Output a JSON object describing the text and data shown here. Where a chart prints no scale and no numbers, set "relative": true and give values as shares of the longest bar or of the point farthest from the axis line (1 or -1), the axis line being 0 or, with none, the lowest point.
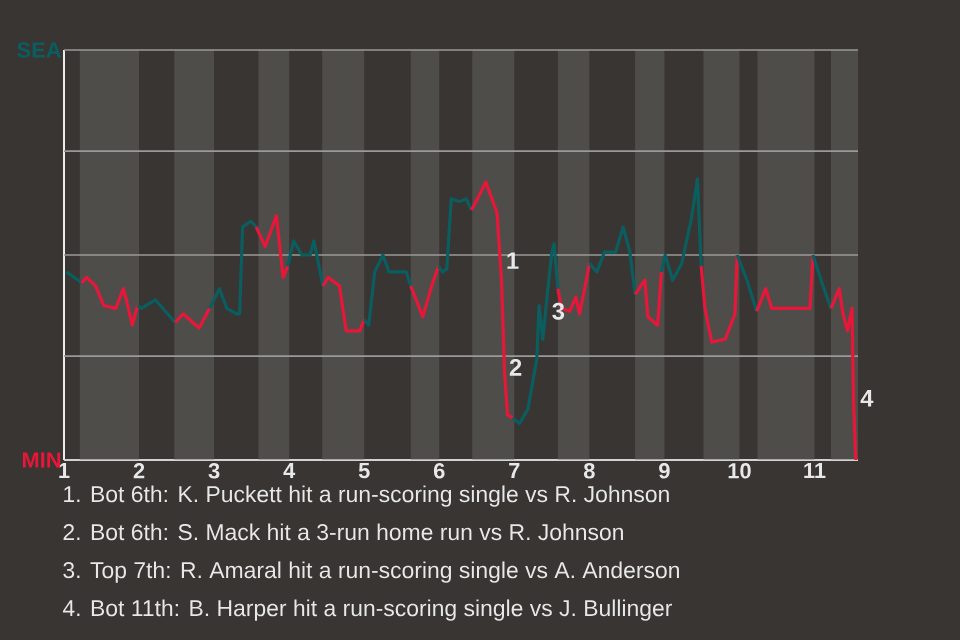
{
  "chart_data": {
    "type": "line",
    "relative": true,
    "xlim": [
      1,
      11.58
    ],
    "xticks": [
      1,
      2,
      3,
      4,
      5,
      6,
      7,
      8,
      9,
      10,
      11
    ],
    "ref_lines": [
      {
        "axis": "y",
        "value": 0,
        "label": "MIN",
        "color": "#c8c8c8"
      },
      {
        "axis": "y",
        "value": 0.37,
        "color": "#9a9a9a"
      },
      {
        "axis": "y",
        "value": 0.73,
        "color": "#9a9a9a"
      },
      {
        "axis": "y",
        "value": 1.1,
        "color": "#9a9a9a"
      },
      {
        "axis": "y",
        "value": 1.46,
        "label": "SEA",
        "color": "#9a9a9a"
      }
    ],
    "bands": [
      {
        "axis": "x",
        "from": 1.21,
        "to": 2,
        "color": "#4f4d4a"
      },
      {
        "axis": "x",
        "from": 2.47,
        "to": 3,
        "color": "#4f4d4a"
      },
      {
        "axis": "x",
        "from": 3.59,
        "to": 4,
        "color": "#4f4d4a"
      },
      {
        "axis": "x",
        "from": 4.44,
        "to": 5,
        "color": "#4f4d4a"
      },
      {
        "axis": "x",
        "from": 5.62,
        "to": 6,
        "color": "#4f4d4a"
      },
      {
        "axis": "x",
        "from": 6.44,
        "to": 7,
        "color": "#4f4d4a"
      },
      {
        "axis": "x",
        "from": 7.58,
        "to": 8,
        "color": "#4f4d4a"
      },
      {
        "axis": "x",
        "from": 8.61,
        "to": 9,
        "color": "#4f4d4a"
      },
      {
        "axis": "x",
        "from": 9.52,
        "to": 10,
        "color": "#4f4d4a"
      },
      {
        "axis": "x",
        "from": 10.24,
        "to": 11,
        "color": "#4f4d4a"
      },
      {
        "axis": "x",
        "from": 11.22,
        "to": 11.58,
        "color": "#4f4d4a"
      }
    ],
    "series": [
      {
        "color": "#0b5e60",
        "x": [
          1.03,
          1.19,
          1.23
        ],
        "values": [
          0.67,
          0.64,
          0.63
        ]
      },
      {
        "color": "#e8173a",
        "x": [
          1.23,
          1.3,
          1.42,
          1.53,
          1.69,
          1.79,
          1.84,
          1.91,
          1.95,
          1.98
        ],
        "values": [
          0.63,
          0.65,
          0.62,
          0.55,
          0.54,
          0.61,
          0.56,
          0.48,
          0.52,
          0.55
        ]
      },
      {
        "color": "#0b5e60",
        "x": [
          1.98,
          2.03,
          2.22,
          2.48
        ],
        "values": [
          0.55,
          0.54,
          0.57,
          0.49
        ]
      },
      {
        "color": "#e8173a",
        "x": [
          2.48,
          2.59,
          2.8,
          2.94
        ],
        "values": [
          0.49,
          0.52,
          0.47,
          0.54
        ]
      },
      {
        "color": "#0b5e60",
        "x": [
          2.94,
          3.07,
          3.17,
          3.3,
          3.34,
          3.38,
          3.49,
          3.56
        ],
        "values": [
          0.54,
          0.61,
          0.54,
          0.52,
          0.52,
          0.83,
          0.85,
          0.83
        ]
      },
      {
        "color": "#e8173a",
        "x": [
          3.56,
          3.68,
          3.83,
          3.92,
          3.98
        ],
        "values": [
          0.83,
          0.76,
          0.87,
          0.65,
          0.69
        ]
      },
      {
        "color": "#0b5e60",
        "x": [
          3.98,
          4.06,
          4.17,
          4.28,
          4.33,
          4.39,
          4.45
        ],
        "values": [
          0.69,
          0.78,
          0.73,
          0.73,
          0.78,
          0.7,
          0.62
        ]
      },
      {
        "color": "#e8173a",
        "x": [
          4.45,
          4.52,
          4.67,
          4.76,
          4.94,
          5.0
        ],
        "values": [
          0.62,
          0.65,
          0.62,
          0.46,
          0.46,
          0.5
        ]
      },
      {
        "color": "#0b5e60",
        "x": [
          5.0,
          5.06,
          5.14,
          5.25,
          5.33,
          5.56,
          5.62
        ],
        "values": [
          0.5,
          0.48,
          0.67,
          0.73,
          0.67,
          0.67,
          0.62
        ]
      },
      {
        "color": "#e8173a",
        "x": [
          5.62,
          5.78,
          5.9,
          5.99
        ],
        "values": [
          0.62,
          0.51,
          0.62,
          0.69
        ]
      },
      {
        "color": "#0b5e60",
        "x": [
          5.99,
          6.04,
          6.1,
          6.16,
          6.27,
          6.36,
          6.43
        ],
        "values": [
          0.69,
          0.67,
          0.68,
          0.93,
          0.92,
          0.93,
          0.89
        ]
      },
      {
        "color": "#e8173a",
        "x": [
          6.43,
          6.51,
          6.62,
          6.77,
          6.83,
          6.87,
          6.91,
          6.98
        ],
        "values": [
          0.89,
          0.93,
          0.99,
          0.88,
          0.64,
          0.31,
          0.16,
          0.15
        ]
      },
      {
        "color": "#0b5e60",
        "x": [
          6.98,
          7.07,
          7.18,
          7.3,
          7.33,
          7.38,
          7.44,
          7.5,
          7.53,
          7.58
        ],
        "values": [
          0.15,
          0.13,
          0.18,
          0.36,
          0.55,
          0.43,
          0.59,
          0.74,
          0.77,
          0.61
        ]
      },
      {
        "color": "#e8173a",
        "x": [
          7.58,
          7.63,
          7.74,
          7.82,
          7.87,
          7.96,
          8.0
        ],
        "values": [
          0.61,
          0.54,
          0.53,
          0.58,
          0.52,
          0.64,
          0.7
        ]
      },
      {
        "color": "#0b5e60",
        "x": [
          8.0,
          8.1,
          8.2,
          8.35,
          8.45,
          8.54,
          8.61
        ],
        "values": [
          0.7,
          0.67,
          0.74,
          0.74,
          0.83,
          0.74,
          0.59
        ]
      },
      {
        "color": "#e8173a",
        "x": [
          8.61,
          8.74,
          8.78,
          8.91,
          8.96
        ],
        "values": [
          0.59,
          0.64,
          0.51,
          0.48,
          0.67
        ]
      },
      {
        "color": "#0b5e60",
        "x": [
          8.96,
          9.01,
          9.11,
          9.23,
          9.36,
          9.44,
          9.49
        ],
        "values": [
          0.67,
          0.73,
          0.64,
          0.7,
          0.86,
          1,
          0.69
        ]
      },
      {
        "color": "#e8173a",
        "x": [
          9.49,
          9.54,
          9.63,
          9.81,
          9.94,
          9.97
        ],
        "values": [
          0.69,
          0.54,
          0.42,
          0.43,
          0.52,
          0.73
        ]
      },
      {
        "color": "#0b5e60",
        "x": [
          9.97,
          10.1,
          10.23
        ],
        "values": [
          0.73,
          0.64,
          0.53
        ]
      },
      {
        "color": "#e8173a",
        "x": [
          10.23,
          10.35,
          10.43,
          10.94,
          10.98
        ],
        "values": [
          0.53,
          0.61,
          0.54,
          0.54,
          0.73
        ]
      },
      {
        "color": "#0b5e60",
        "x": [
          10.98,
          11.1,
          11.22
        ],
        "values": [
          0.73,
          0.63,
          0.54
        ]
      },
      {
        "color": "#e8173a",
        "x": [
          11.22,
          11.33,
          11.38,
          11.44,
          11.5,
          11.52,
          11.55
        ],
        "values": [
          0.54,
          0.61,
          0.52,
          0.46,
          0.54,
          0.21,
          0
        ]
      }
    ],
    "annotations": [
      {
        "text": "1",
        "x": 6.83,
        "y": 0.71
      },
      {
        "text": "2",
        "x": 6.87,
        "y": 0.33
      },
      {
        "text": "3",
        "x": 7.44,
        "y": 0.53
      },
      {
        "text": "4",
        "x": 11.55,
        "y": 0.22
      },
      "1. Bot 6th: K. Puckett hit a run-scoring single vs R. Johnson",
      "2. Bot 6th: S. Mack hit a 3-run home run vs R. Johnson",
      "3. Top 7th: R. Amaral hit a run-scoring single vs A. Anderson",
      "4. Bot 11th: B. Harper hit a run-scoring single vs J. Bullinger"
    ]
  }
}
